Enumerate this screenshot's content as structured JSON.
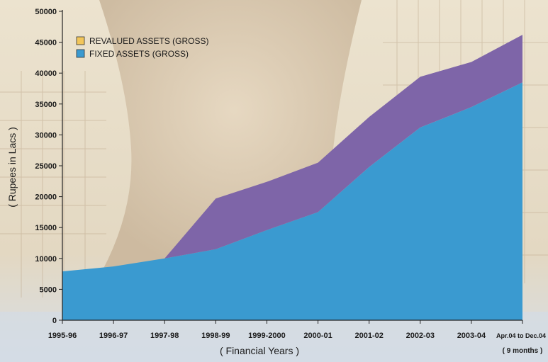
{
  "chart_data": {
    "type": "area",
    "stacked": true,
    "title": "",
    "xlabel": "( Financial Years )",
    "ylabel": "( Rupees in Lacs )",
    "ylim": [
      0,
      50000
    ],
    "yticks": [
      0,
      5000,
      10000,
      15000,
      20000,
      25000,
      30000,
      35000,
      40000,
      45000,
      50000
    ],
    "categories": [
      "1995-96",
      "1996-97",
      "1997-98",
      "1998-99",
      "1999-2000",
      "2000-01",
      "2001-02",
      "2002-03",
      "2003-04",
      "Apr.04 to Dec.04"
    ],
    "last_category_note": "( 9 months )",
    "legend_position": "top-left",
    "series": [
      {
        "name": "FIXED ASSETS (GROSS)",
        "color": "#3a9ad0",
        "values": [
          7900,
          8700,
          10000,
          11500,
          14600,
          17500,
          24800,
          31200,
          34500,
          38500
        ]
      },
      {
        "name": "REVALUED ASSETS (GROSS)",
        "color": "#7e65a8",
        "legend_swatch_color": "#f2c65a",
        "values": [
          0,
          0,
          0,
          8200,
          7800,
          8000,
          8100,
          8200,
          7300,
          7700
        ]
      }
    ],
    "grid": false
  }
}
